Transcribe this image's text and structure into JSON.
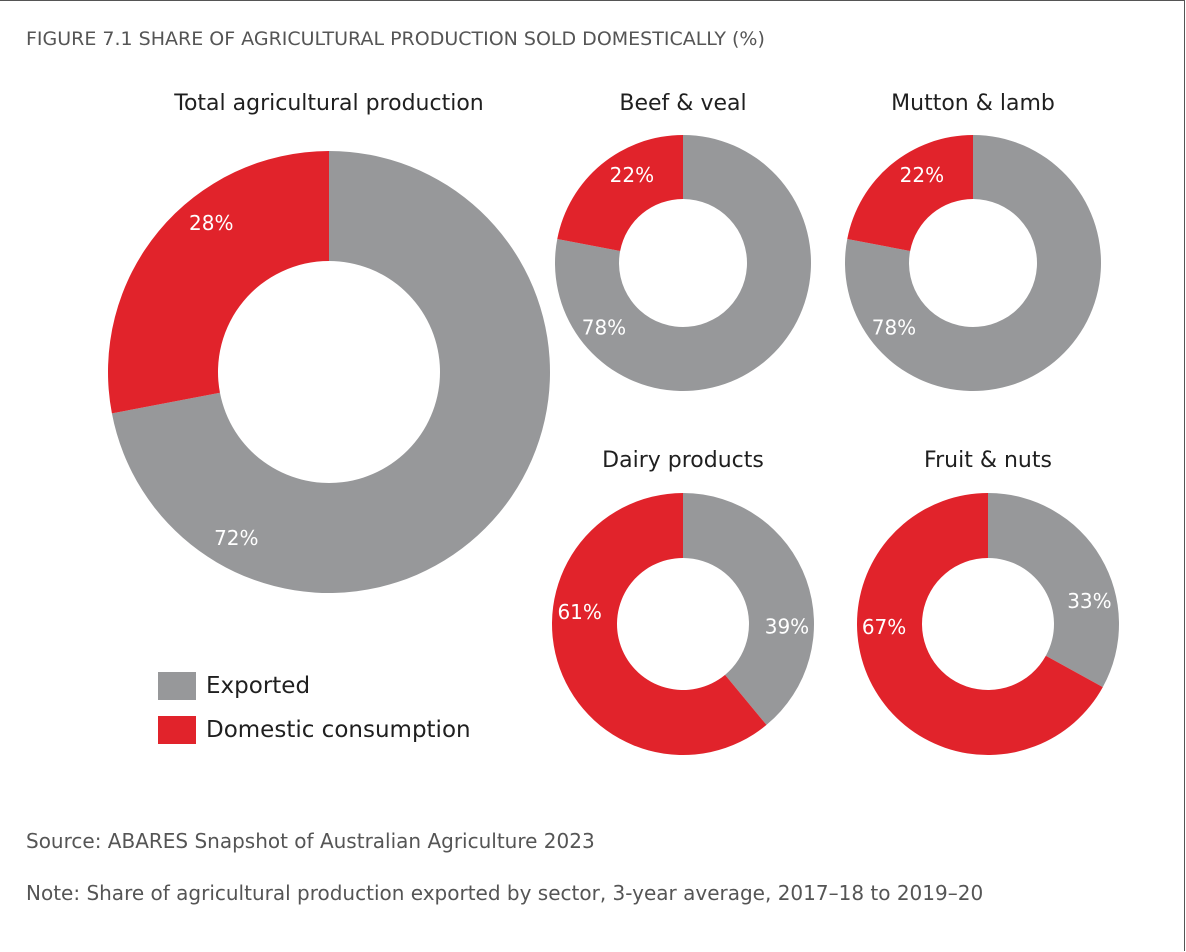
{
  "figure_title": "FIGURE 7.1 SHARE OF AGRICULTURAL PRODUCTION SOLD DOMESTICALLY (%)",
  "colors": {
    "exported": "#97989a",
    "domestic": "#e1232b"
  },
  "chart_data": [
    {
      "type": "pie",
      "title": "Total agricultural production",
      "slices": [
        {
          "category": "Domestic consumption",
          "value": 28,
          "label": "28%"
        },
        {
          "category": "Exported",
          "value": 72,
          "label": "72%"
        }
      ]
    },
    {
      "type": "pie",
      "title": "Beef & veal",
      "slices": [
        {
          "category": "Domestic consumption",
          "value": 22,
          "label": "22%"
        },
        {
          "category": "Exported",
          "value": 78,
          "label": "78%"
        }
      ]
    },
    {
      "type": "pie",
      "title": "Mutton & lamb",
      "slices": [
        {
          "category": "Domestic consumption",
          "value": 22,
          "label": "22%"
        },
        {
          "category": "Exported",
          "value": 78,
          "label": "78%"
        }
      ]
    },
    {
      "type": "pie",
      "title": "Dairy products",
      "slices": [
        {
          "category": "Domestic consumption",
          "value": 61,
          "label": "61%"
        },
        {
          "category": "Exported",
          "value": 39,
          "label": "39%"
        }
      ]
    },
    {
      "type": "pie",
      "title": "Fruit & nuts",
      "slices": [
        {
          "category": "Domestic consumption",
          "value": 67,
          "label": "67%"
        },
        {
          "category": "Exported",
          "value": 33,
          "label": "33%"
        }
      ]
    }
  ],
  "legend": {
    "exported": "Exported",
    "domestic": "Domestic consumption"
  },
  "source": "Source: ABARES Snapshot of Australian Agriculture 2023",
  "note": "Note: Share of agricultural production exported by sector, 3-year average, 2017–18 to 2019–20"
}
